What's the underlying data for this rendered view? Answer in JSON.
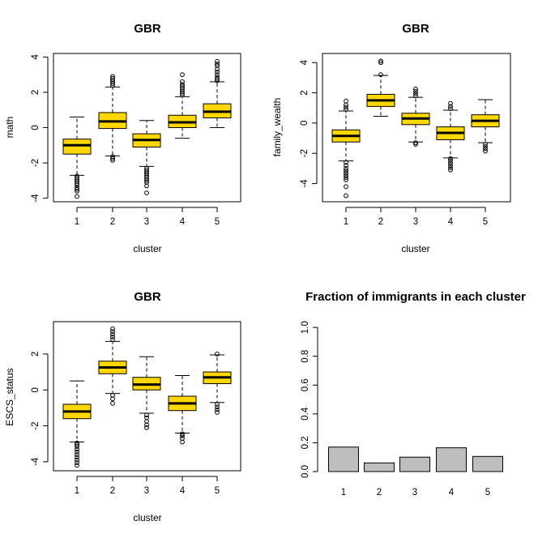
{
  "chart_data": [
    {
      "type": "boxplot",
      "title": "GBR",
      "xlabel": "cluster",
      "ylabel": "math",
      "categories": [
        "1",
        "2",
        "3",
        "4",
        "5"
      ],
      "yticks": [
        "-4",
        "-2",
        "0",
        "2",
        "4"
      ],
      "ylim": [
        -4.2,
        4.2
      ],
      "box_color": "#ffd700",
      "boxes": [
        {
          "whisker_low": -2.7,
          "q1": -1.5,
          "median": -1.0,
          "q3": -0.65,
          "whisker_high": 0.6,
          "outliers": [
            -2.75,
            -2.85,
            -2.95,
            -3.05,
            -3.15,
            -3.25,
            -3.4,
            -3.5,
            -3.6,
            -3.9
          ]
        },
        {
          "whisker_low": -1.6,
          "q1": -0.05,
          "median": 0.35,
          "q3": 0.85,
          "whisker_high": 2.3,
          "outliers": [
            -1.65,
            -1.75,
            -1.85,
            2.4,
            2.5,
            2.6,
            2.7,
            2.8,
            2.9
          ]
        },
        {
          "whisker_low": -2.2,
          "q1": -1.1,
          "median": -0.7,
          "q3": -0.35,
          "whisker_high": 0.4,
          "outliers": [
            -2.3,
            -2.4,
            -2.5,
            -2.6,
            -2.7,
            -2.8,
            -2.9,
            -3.0,
            -3.1,
            -3.3,
            -3.7
          ]
        },
        {
          "whisker_low": -0.6,
          "q1": 0.0,
          "median": 0.3,
          "q3": 0.7,
          "whisker_high": 1.75,
          "outliers": [
            1.85,
            1.95,
            2.05,
            2.15,
            2.25,
            2.35,
            2.45,
            2.6,
            3.0
          ]
        },
        {
          "whisker_low": 0.0,
          "q1": 0.55,
          "median": 0.9,
          "q3": 1.35,
          "whisker_high": 2.6,
          "outliers": [
            2.65,
            2.75,
            2.85,
            3.0,
            3.15,
            3.3,
            3.5,
            3.6,
            3.75
          ]
        }
      ]
    },
    {
      "type": "boxplot",
      "title": "GBR",
      "xlabel": "cluster",
      "ylabel": "family_wealth",
      "categories": [
        "1",
        "2",
        "3",
        "4",
        "5"
      ],
      "yticks": [
        "-4",
        "-2",
        "0",
        "2",
        "4"
      ],
      "ylim": [
        -5.2,
        4.6
      ],
      "box_color": "#ffd700",
      "boxes": [
        {
          "whisker_low": -2.5,
          "q1": -1.25,
          "median": -0.85,
          "q3": -0.45,
          "whisker_high": 0.8,
          "outliers": [
            -2.6,
            -2.8,
            -3.0,
            -3.15,
            -3.3,
            -3.45,
            -3.6,
            -3.75,
            -4.2,
            -4.8,
            0.9,
            1.05,
            1.2,
            1.45
          ]
        },
        {
          "whisker_low": 0.45,
          "q1": 1.1,
          "median": 1.5,
          "q3": 1.9,
          "whisker_high": 3.15,
          "outliers": [
            3.2,
            4.0,
            4.1
          ]
        },
        {
          "whisker_low": -1.25,
          "q1": -0.1,
          "median": 0.3,
          "q3": 0.65,
          "whisker_high": 1.7,
          "outliers": [
            -1.3,
            -1.4,
            1.8,
            1.95,
            2.1,
            2.25
          ]
        },
        {
          "whisker_low": -2.3,
          "q1": -1.1,
          "median": -0.65,
          "q3": -0.25,
          "whisker_high": 0.85,
          "outliers": [
            -2.35,
            -2.5,
            -2.65,
            -2.8,
            -2.95,
            -3.1,
            0.95,
            1.1,
            1.3
          ]
        },
        {
          "whisker_low": -1.3,
          "q1": -0.25,
          "median": 0.15,
          "q3": 0.55,
          "whisker_high": 1.55,
          "outliers": [
            -1.4,
            -1.55,
            -1.7,
            -1.85
          ]
        }
      ]
    },
    {
      "type": "boxplot",
      "title": "GBR",
      "xlabel": "cluster",
      "ylabel": "ESCS_status",
      "categories": [
        "1",
        "2",
        "3",
        "4",
        "5"
      ],
      "yticks": [
        "-4",
        "-2",
        "0",
        "2"
      ],
      "ylim": [
        -4.5,
        3.8
      ],
      "box_color": "#ffd700",
      "boxes": [
        {
          "whisker_low": -2.9,
          "q1": -1.6,
          "median": -1.2,
          "q3": -0.8,
          "whisker_high": 0.5,
          "outliers": [
            -2.95,
            -3.05,
            -3.15,
            -3.3,
            -3.45,
            -3.6,
            -3.75,
            -3.9,
            -4.05,
            -4.2
          ]
        },
        {
          "whisker_low": -0.2,
          "q1": 0.9,
          "median": 1.25,
          "q3": 1.6,
          "whisker_high": 2.7,
          "outliers": [
            -0.3,
            -0.5,
            -0.75,
            2.8,
            2.95,
            3.1,
            3.25,
            3.4
          ]
        },
        {
          "whisker_low": -1.3,
          "q1": 0.0,
          "median": 0.3,
          "q3": 0.7,
          "whisker_high": 1.85,
          "outliers": [
            -1.4,
            -1.55,
            -1.75,
            -1.95,
            -2.1
          ]
        },
        {
          "whisker_low": -2.4,
          "q1": -1.15,
          "median": -0.75,
          "q3": -0.35,
          "whisker_high": 0.8,
          "outliers": [
            -2.45,
            -2.55,
            -2.7,
            -2.9
          ]
        },
        {
          "whisker_low": -0.7,
          "q1": 0.35,
          "median": 0.7,
          "q3": 1.0,
          "whisker_high": 1.95,
          "outliers": [
            -0.8,
            -0.95,
            -1.1,
            -1.25,
            2.0
          ]
        }
      ]
    },
    {
      "type": "bar",
      "title": "Fraction of immigrants in each cluster",
      "xlabel": "",
      "ylabel": "",
      "categories": [
        "1",
        "2",
        "3",
        "4",
        "5"
      ],
      "values": [
        0.17,
        0.06,
        0.1,
        0.165,
        0.105
      ],
      "yticks": [
        "0.0",
        "0.2",
        "0.4",
        "0.6",
        "0.8",
        "1.0"
      ],
      "ylim": [
        0,
        1.04
      ],
      "bar_color": "#bebebe"
    }
  ]
}
